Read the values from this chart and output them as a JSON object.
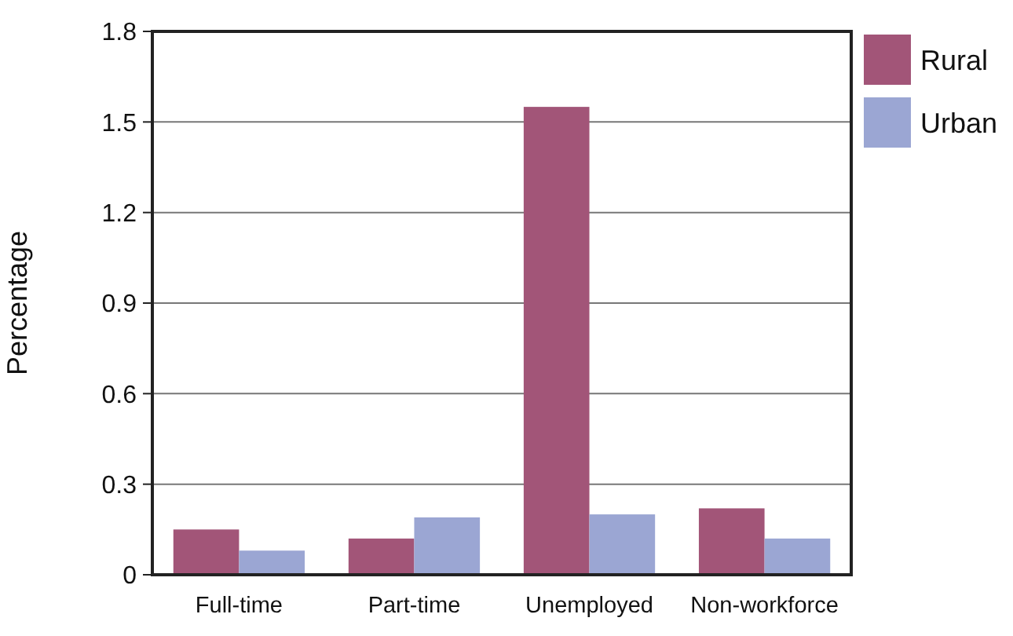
{
  "chart_data": {
    "type": "bar",
    "ylabel": "Percentage",
    "categories": [
      "Full-time",
      "Part-time",
      "Unemployed",
      "Non-workforce"
    ],
    "series": [
      {
        "name": "Rural",
        "color": "#a25578",
        "values": [
          0.15,
          0.12,
          1.55,
          0.22
        ]
      },
      {
        "name": "Urban",
        "color": "#9ba6d3",
        "values": [
          0.08,
          0.19,
          0.2,
          0.12
        ]
      }
    ],
    "ylim": [
      0,
      1.8
    ],
    "yticks": [
      0,
      0.3,
      0.6,
      0.9,
      1.2,
      1.5,
      1.8
    ],
    "grid": "y",
    "legend": "top right"
  }
}
